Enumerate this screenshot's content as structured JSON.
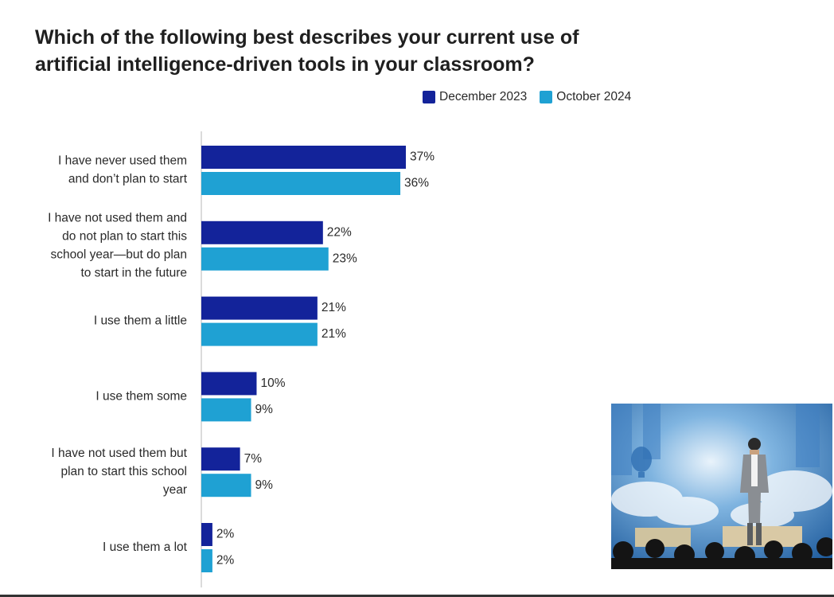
{
  "title_lines": [
    "Which of the following best describes your current use of",
    "artificial intelligence-driven tools in your classroom?"
  ],
  "colors": {
    "December 2023": "#13239a",
    "October 2024": "#1fa1d3",
    "axis": "#cfcfcf"
  },
  "chart_data": {
    "type": "bar",
    "orientation": "horizontal",
    "title": "Which of the following best describes your current use of artificial intelligence-driven tools in your classroom?",
    "categories": [
      "I have never used them and don’t plan to start",
      "I have not used them and do not plan to start this school year—but do plan to start in the future",
      "I use them a little",
      "I use them some",
      "I have not used them but plan to start this school year",
      "I use them a lot"
    ],
    "category_lines": [
      [
        "I have never used them",
        "and don’t plan to start"
      ],
      [
        "I have not used them and",
        "do not plan to start this",
        "school year—but do plan",
        "to start in the future"
      ],
      [
        "I use them a little"
      ],
      [
        "I use them some"
      ],
      [
        "I have not used them but",
        "plan to start this school",
        "year"
      ],
      [
        "I use them a lot"
      ]
    ],
    "series": [
      {
        "name": "December 2023",
        "values": [
          37,
          22,
          21,
          10,
          7,
          2
        ]
      },
      {
        "name": "October 2024",
        "values": [
          36,
          23,
          21,
          9,
          9,
          2
        ]
      }
    ],
    "value_suffix": "%",
    "xlim": [
      0,
      37
    ],
    "grid": false,
    "legend_position": "top-right"
  }
}
